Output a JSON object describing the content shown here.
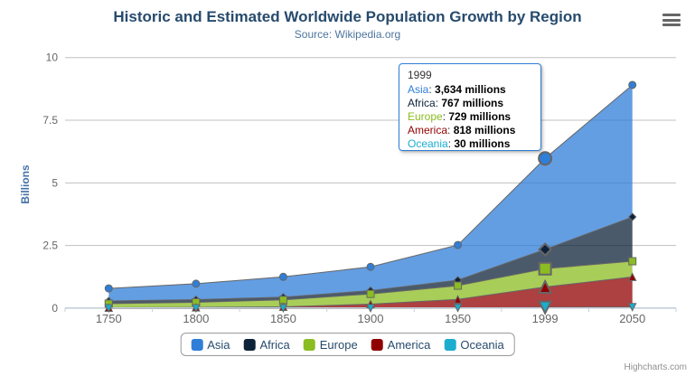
{
  "header": {
    "title": "Historic and Estimated Worldwide Population Growth by Region",
    "subtitle": "Source: Wikipedia.org"
  },
  "export_menu": {
    "icon": "hamburger-menu-icon"
  },
  "chart_data": {
    "type": "area",
    "stacking": "normal",
    "title": "Historic and Estimated Worldwide Population Growth by Region",
    "subtitle": "Source: Wikipedia.org",
    "categories": [
      "1750",
      "1800",
      "1850",
      "1900",
      "1950",
      "1999",
      "2050"
    ],
    "series": [
      {
        "name": "Asia",
        "color": "#2f7ed8",
        "marker": "circle",
        "values": [
          502,
          635,
          809,
          947,
          1402,
          3634,
          5268
        ]
      },
      {
        "name": "Africa",
        "color": "#0d233a",
        "marker": "diamond",
        "values": [
          106,
          107,
          111,
          133,
          221,
          767,
          1766
        ]
      },
      {
        "name": "Europe",
        "color": "#8bbc21",
        "marker": "square",
        "values": [
          163,
          203,
          276,
          408,
          547,
          729,
          628
        ]
      },
      {
        "name": "America",
        "color": "#910000",
        "marker": "triangle",
        "values": [
          18,
          31,
          54,
          156,
          339,
          818,
          1201
        ]
      },
      {
        "name": "Oceania",
        "color": "#1aadce",
        "marker": "triangle-down",
        "values": [
          2,
          2,
          2,
          6,
          13,
          30,
          46
        ]
      }
    ],
    "values_unit": "millions",
    "ylabel": "Billions",
    "xlabel": "",
    "yticks": [
      "0",
      "2.5",
      "5",
      "7.5",
      "10"
    ],
    "ylim": [
      0,
      10
    ],
    "grid": true,
    "line_color": "#666666",
    "grid_color": "#C0C0C0",
    "axis_line_color": "#C0D0E0",
    "legend_position": "bottom",
    "hover_category_index": 5
  },
  "tooltip": {
    "header": "1999",
    "rows": [
      {
        "series": "Asia",
        "value": "3,634 millions"
      },
      {
        "series": "Africa",
        "value": "767 millions"
      },
      {
        "series": "Europe",
        "value": "729 millions"
      },
      {
        "series": "America",
        "value": "818 millions"
      },
      {
        "series": "Oceania",
        "value": "30 millions"
      }
    ],
    "border_color": "#2f7ed8"
  },
  "credits": {
    "label": "Highcharts.com"
  }
}
